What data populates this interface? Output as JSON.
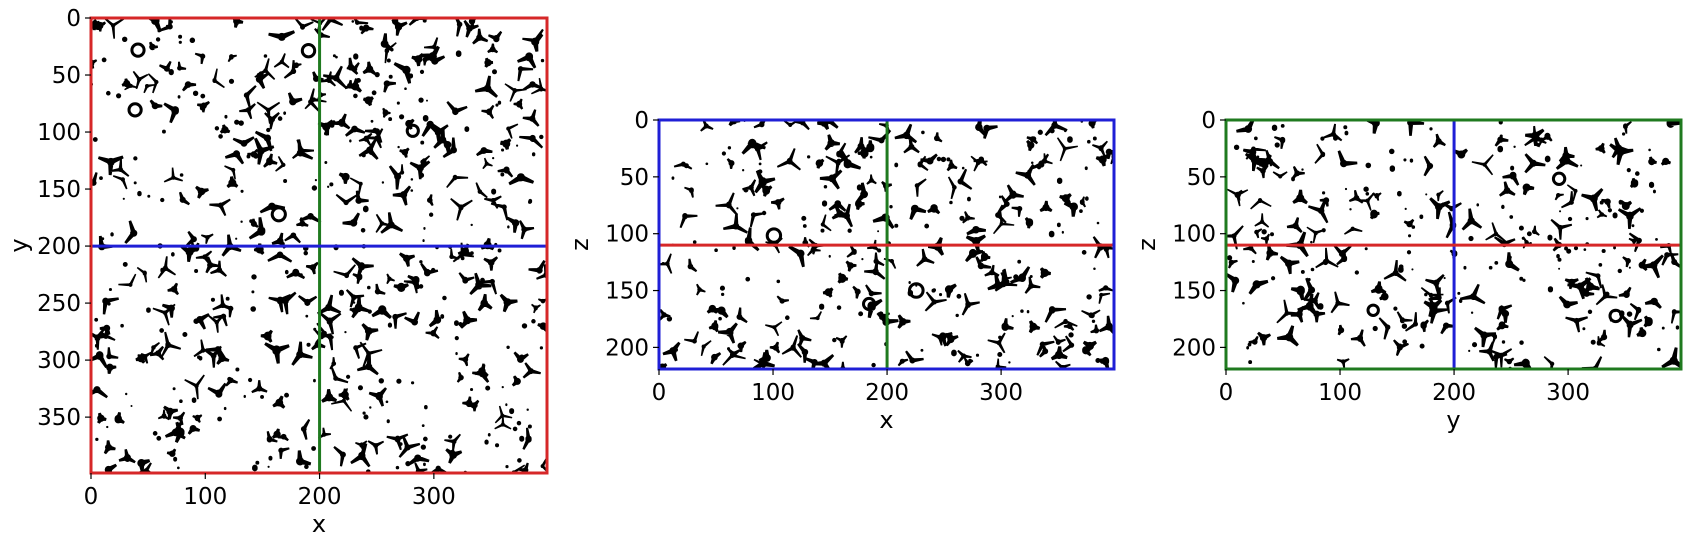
{
  "chart_data": [
    {
      "type": "heatmap",
      "title": "",
      "xlabel": "x",
      "ylabel": "y",
      "xlim": [
        0,
        399
      ],
      "ylim": [
        399,
        0
      ],
      "xticks": [
        0,
        100,
        200,
        300
      ],
      "yticks": [
        0,
        50,
        100,
        150,
        200,
        250,
        300,
        350
      ],
      "frame_color": "#d62728",
      "vertical_line": {
        "value": 200,
        "color": "#1f7a1f"
      },
      "horizontal_line": {
        "value": 200,
        "color": "#1f1fd6"
      },
      "colormap": [
        "#ffffff",
        "#000000"
      ]
    },
    {
      "type": "heatmap",
      "title": "",
      "xlabel": "x",
      "ylabel": "z",
      "xlim": [
        0,
        399
      ],
      "ylim": [
        219,
        0
      ],
      "xticks": [
        0,
        100,
        200,
        300
      ],
      "yticks": [
        0,
        50,
        100,
        150,
        200
      ],
      "frame_color": "#1f1fd6",
      "vertical_line": {
        "value": 200,
        "color": "#1f7a1f"
      },
      "horizontal_line": {
        "value": 110,
        "color": "#d62728"
      },
      "colormap": [
        "#ffffff",
        "#000000"
      ]
    },
    {
      "type": "heatmap",
      "title": "",
      "xlabel": "y",
      "ylabel": "z",
      "xlim": [
        0,
        399
      ],
      "ylim": [
        219,
        0
      ],
      "xticks": [
        0,
        100,
        200,
        300
      ],
      "yticks": [
        0,
        50,
        100,
        150,
        200
      ],
      "frame_color": "#1f7a1f",
      "vertical_line": {
        "value": 200,
        "color": "#1f1fd6"
      },
      "horizontal_line": {
        "value": 110,
        "color": "#d62728"
      },
      "colormap": [
        "#ffffff",
        "#000000"
      ]
    }
  ]
}
